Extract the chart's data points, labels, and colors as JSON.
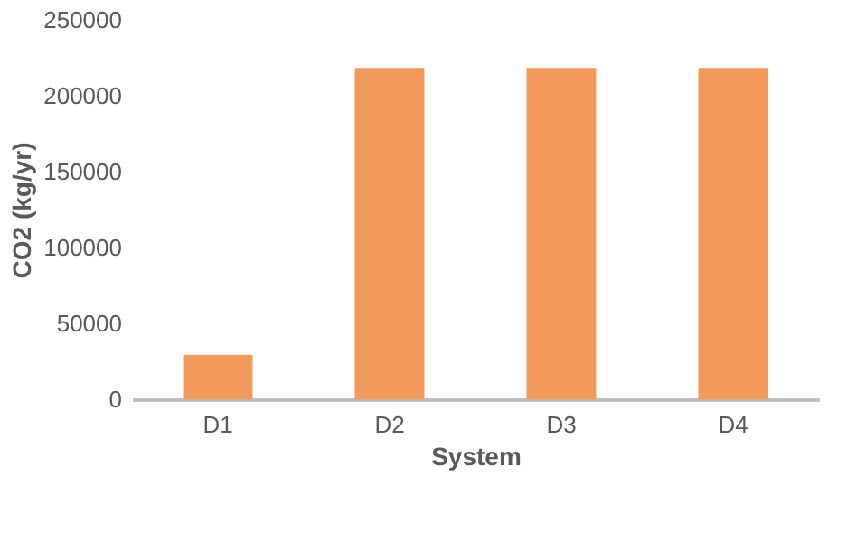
{
  "chart_data": {
    "type": "bar",
    "xlabel": "System",
    "ylabel": "CO2 (kg/yr)",
    "categories": [
      "D1",
      "D2",
      "D3",
      "D4"
    ],
    "values": [
      29000,
      218000,
      218000,
      218000
    ],
    "color": "#f29a5c",
    "ylim": [
      0,
      250000
    ],
    "yticks": [
      0,
      50000,
      100000,
      150000,
      200000,
      250000
    ],
    "grid": false
  }
}
